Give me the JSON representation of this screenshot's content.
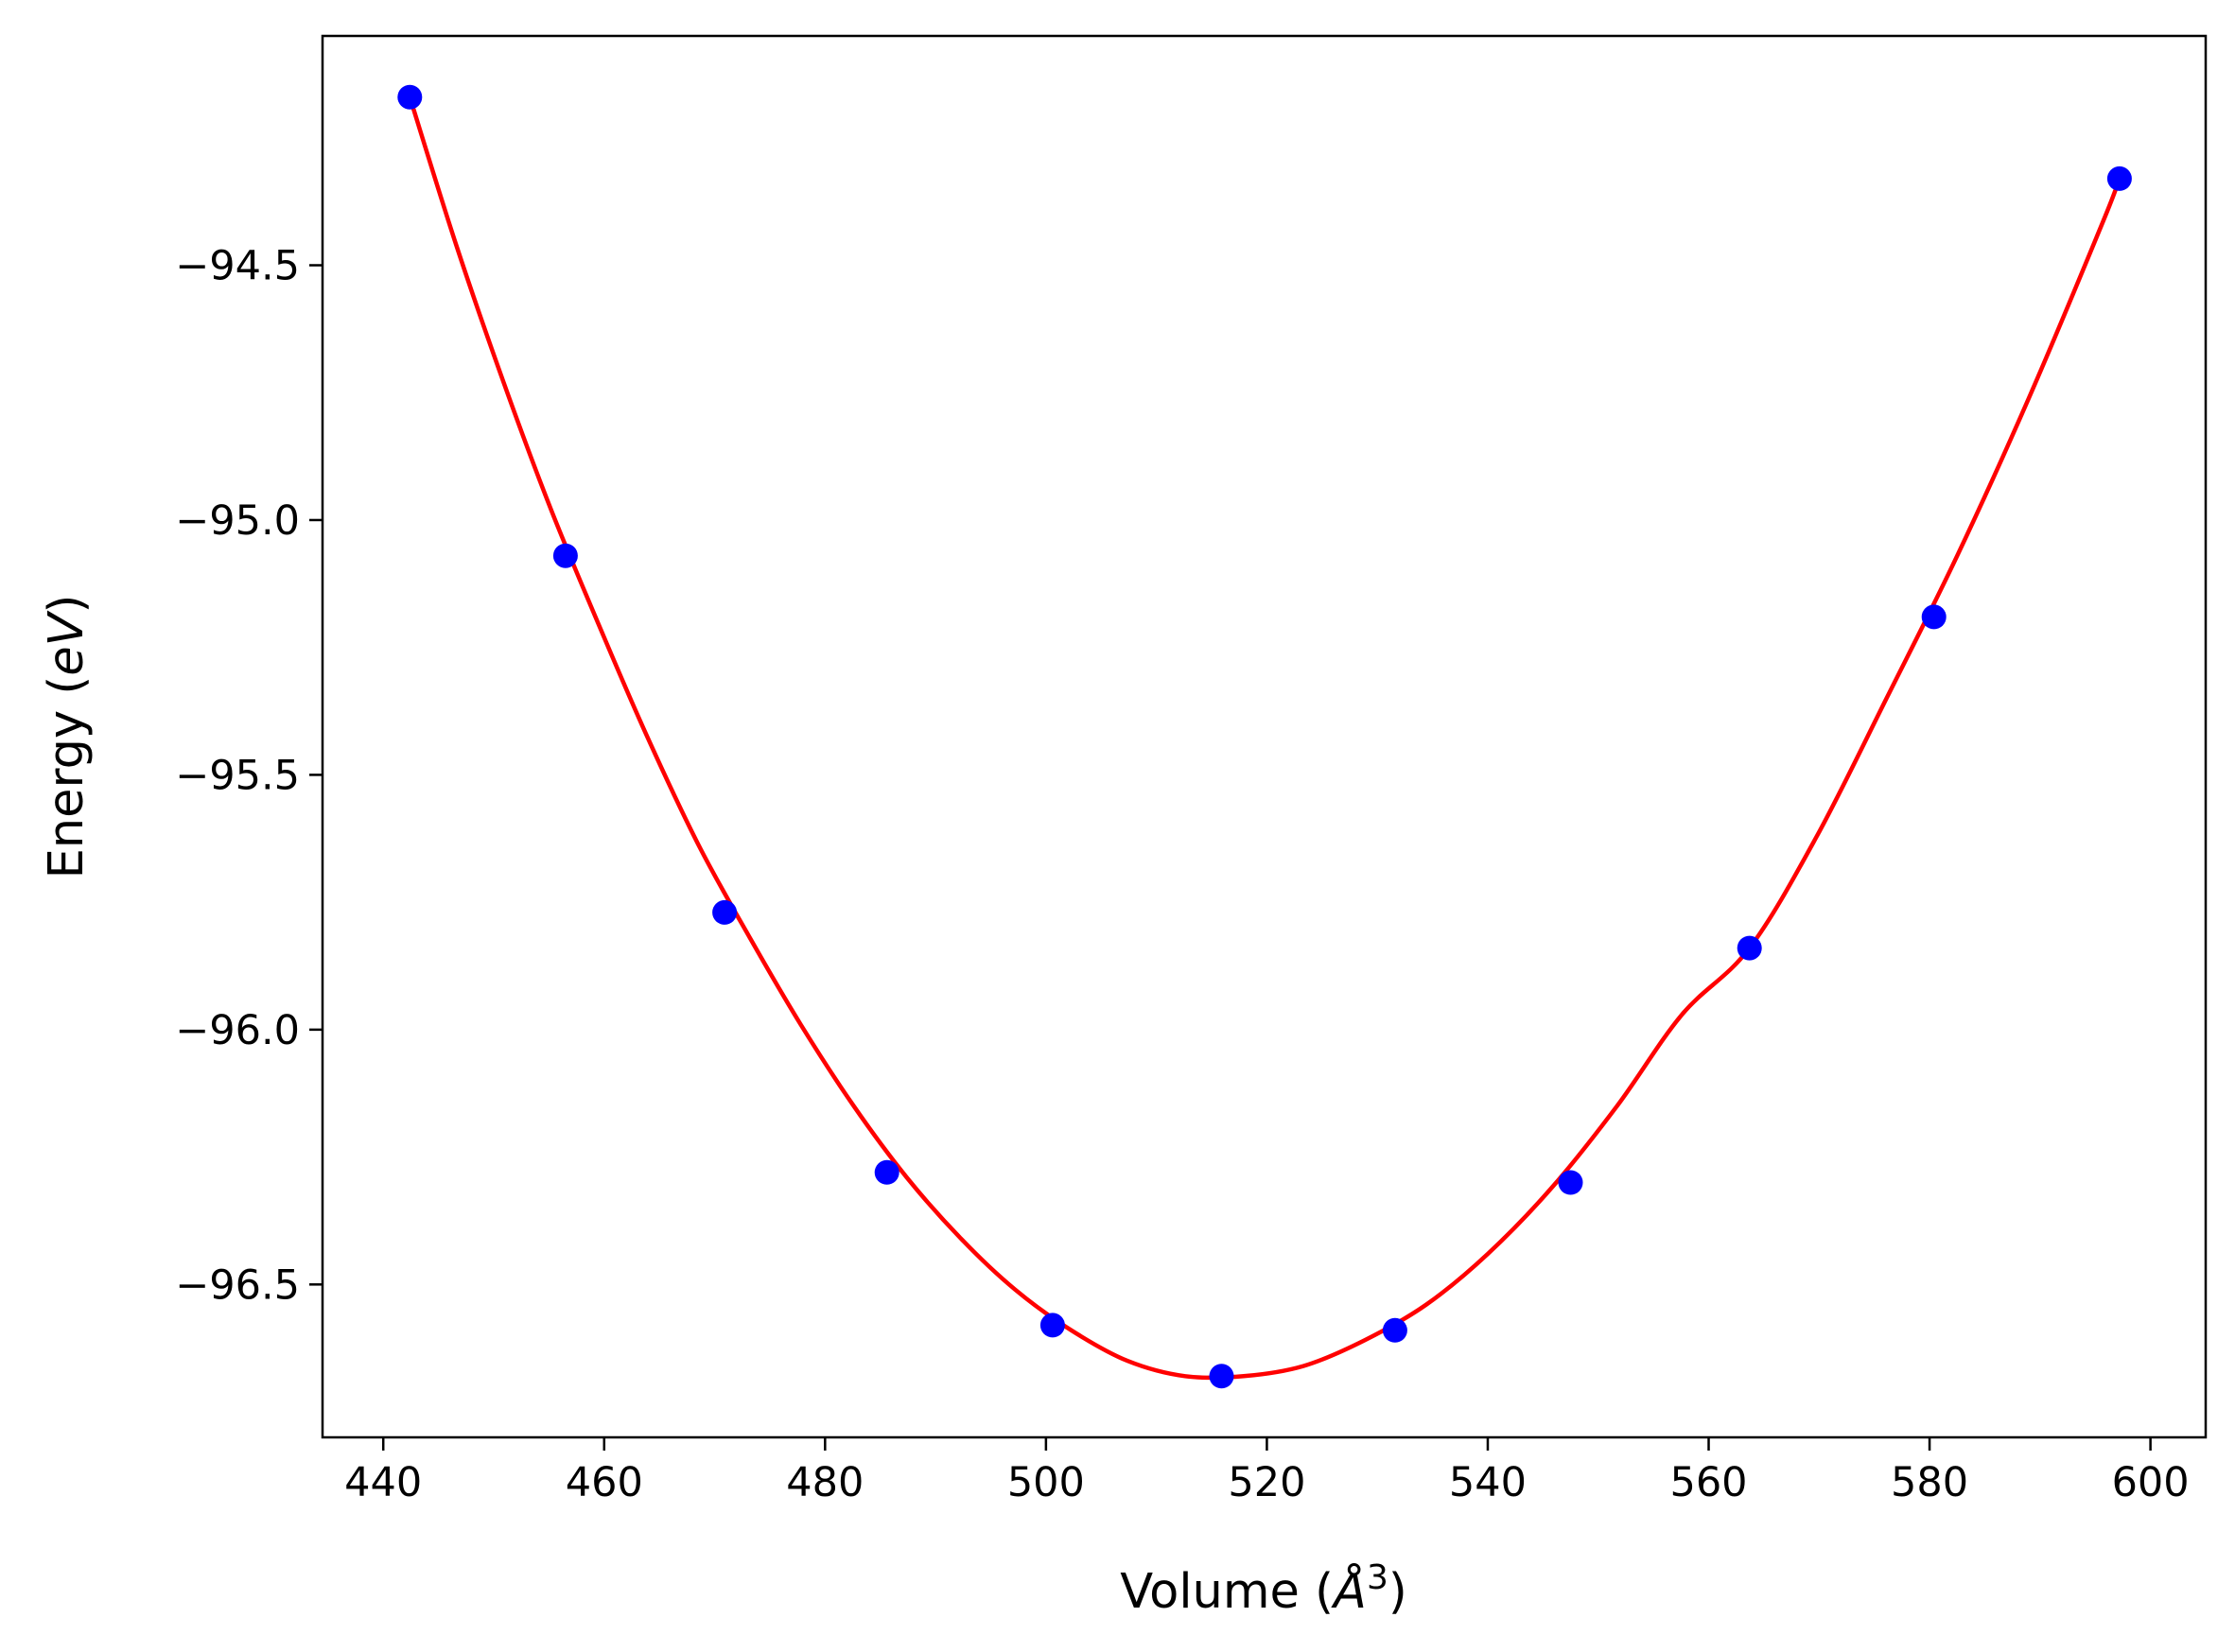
{
  "chart_data": {
    "type": "scatter",
    "title": "",
    "xlabel": "Volume (",
    "xlabel_unit_symbol": "Å",
    "xlabel_unit_exponent": "3",
    "xlabel_close": ")",
    "ylabel": "Energy (",
    "ylabel_unit": "eV",
    "ylabel_close": ")",
    "xlim": [
      434.5,
      605.0
    ],
    "ylim": [
      -96.8,
      -94.05
    ],
    "xticks": [
      440,
      460,
      480,
      500,
      520,
      540,
      560,
      580,
      600
    ],
    "xtick_labels": [
      "440",
      "460",
      "480",
      "500",
      "520",
      "540",
      "560",
      "580",
      "600"
    ],
    "yticks": [
      -94.5,
      -95.0,
      -95.5,
      -96.0,
      -96.5
    ],
    "ytick_labels": [
      "−94.5",
      "−95.0",
      "−95.5",
      "−96.0",
      "−96.5"
    ],
    "grid": false,
    "legend": "none",
    "series": [
      {
        "kind": "points",
        "color": "#0000ff",
        "x": [
          442.4,
          456.5,
          470.9,
          485.6,
          500.6,
          515.9,
          531.6,
          547.5,
          563.7,
          580.4,
          597.2
        ],
        "y": [
          -94.17,
          -95.07,
          -95.77,
          -96.28,
          -96.58,
          -96.68,
          -96.59,
          -96.3,
          -95.84,
          -95.19,
          -94.33
        ]
      },
      {
        "kind": "fit-curve",
        "color": "#ff0000",
        "x": [
          442.4,
          446.6,
          450.9,
          455.2,
          459.6,
          464.0,
          468.6,
          473.2,
          477.8,
          482.6,
          487.4,
          492.3,
          497.2,
          502.3,
          507.4,
          512.6,
          517.9,
          523.3,
          528.8,
          534.4,
          540.0,
          545.8,
          551.7,
          557.6,
          563.7,
          569.8,
          576.1,
          582.5,
          589.0,
          595.6,
          597.2
        ],
        "y": [
          -94.17,
          -94.46,
          -94.73,
          -94.98,
          -95.21,
          -95.43,
          -95.64,
          -95.82,
          -95.99,
          -96.15,
          -96.29,
          -96.41,
          -96.51,
          -96.59,
          -96.65,
          -96.68,
          -96.68,
          -96.66,
          -96.61,
          -96.54,
          -96.44,
          -96.31,
          -96.15,
          -95.97,
          -95.84,
          -95.62,
          -95.35,
          -95.07,
          -94.76,
          -94.42,
          -94.33
        ]
      }
    ]
  }
}
